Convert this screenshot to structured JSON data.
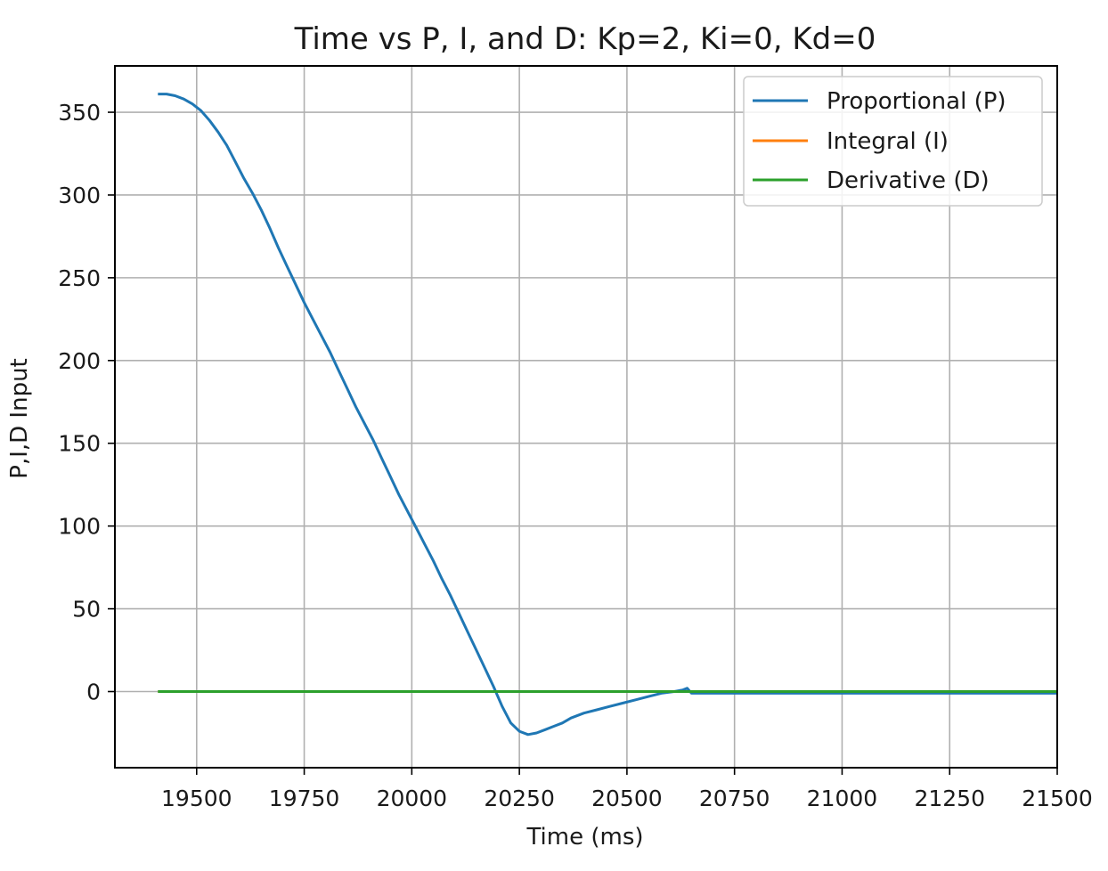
{
  "chart_data": {
    "type": "line",
    "title": "Time vs P, I, and D: Kp=2, Ki=0, Kd=0",
    "xlabel": "Time (ms)",
    "ylabel": "P,I,D Input",
    "xlim": [
      19310,
      21500
    ],
    "ylim": [
      -46,
      378
    ],
    "xticks": [
      19500,
      19750,
      20000,
      20250,
      20500,
      20750,
      21000,
      21250,
      21500
    ],
    "yticks": [
      0,
      50,
      100,
      150,
      200,
      250,
      300,
      350
    ],
    "grid": true,
    "legend_position": "top-right",
    "series": [
      {
        "name": "Proportional (P)",
        "color": "#1f77b4",
        "x": [
          19410,
          19430,
          19450,
          19470,
          19490,
          19510,
          19530,
          19550,
          19570,
          19590,
          19610,
          19630,
          19650,
          19670,
          19690,
          19710,
          19730,
          19750,
          19770,
          19790,
          19810,
          19830,
          19850,
          19870,
          19890,
          19910,
          19930,
          19950,
          19970,
          19990,
          20010,
          20030,
          20050,
          20070,
          20090,
          20110,
          20130,
          20150,
          20170,
          20190,
          20210,
          20230,
          20250,
          20270,
          20290,
          20310,
          20330,
          20350,
          20370,
          20400,
          20430,
          20460,
          20490,
          20520,
          20550,
          20580,
          20610,
          20630,
          20640,
          20650,
          20670,
          20700,
          20800,
          21000,
          21200,
          21500
        ],
        "y": [
          361,
          361,
          360,
          358,
          355,
          351,
          345,
          338,
          330,
          320,
          310,
          301,
          291,
          280,
          268,
          257,
          246,
          235,
          225,
          215,
          205,
          194,
          183,
          172,
          162,
          152,
          141,
          130,
          119,
          109,
          99,
          89,
          79,
          68,
          58,
          47,
          36,
          25,
          14,
          3,
          -9,
          -19,
          -24,
          -26,
          -25,
          -23,
          -21,
          -19,
          -16,
          -13,
          -11,
          -9,
          -7,
          -5,
          -3,
          -1,
          0,
          1,
          2,
          -1,
          -1,
          -1,
          -1,
          -1,
          -1,
          -1
        ]
      },
      {
        "name": "Integral (I)",
        "color": "#ff7f0e",
        "x": [
          19410,
          21500
        ],
        "y": [
          0,
          0
        ]
      },
      {
        "name": "Derivative (D)",
        "color": "#2ca02c",
        "x": [
          19410,
          21500
        ],
        "y": [
          0,
          0
        ]
      }
    ]
  }
}
